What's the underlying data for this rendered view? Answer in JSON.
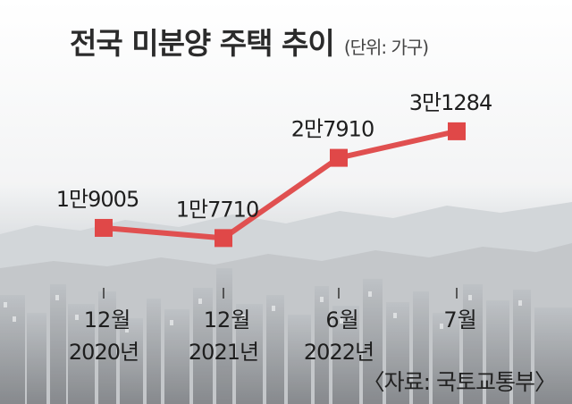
{
  "title": "전국 미분양 주택 추이",
  "unit_note": "(단위: 가구)",
  "source": "〈자료: 국토교통부〉",
  "colors": {
    "line": "#e05050",
    "marker": "#e04848"
  },
  "chart_data": {
    "type": "line",
    "title": "전국 미분양 주택 추이",
    "unit": "가구",
    "categories": [
      {
        "month": "12월",
        "year": "2020년"
      },
      {
        "month": "12월",
        "year": "2021년"
      },
      {
        "month": "6월",
        "year": "2022년"
      },
      {
        "month": "7월",
        "year": ""
      }
    ],
    "values": [
      19005,
      17710,
      27910,
      31284
    ],
    "data_labels": [
      "1만9005",
      "1만7710",
      "2만7910",
      "3만1284"
    ],
    "ylim": [
      14000,
      34000
    ],
    "grid": false,
    "legend": "none"
  }
}
